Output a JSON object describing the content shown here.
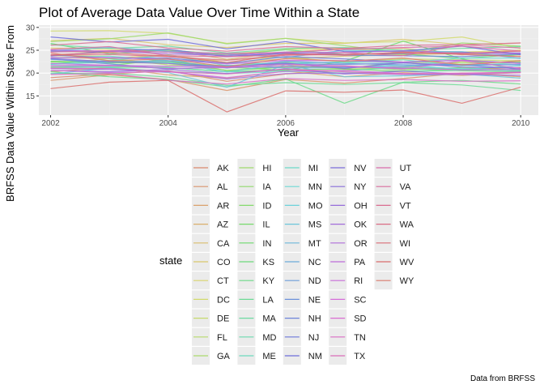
{
  "chart_data": {
    "type": "line",
    "title": "Plot of Average Data Value Over Time Within a State",
    "xlabel": "Year",
    "ylabel": "BRFSS Data Value Within State From",
    "caption": "Data from BRFSS",
    "x": [
      2002,
      2003,
      2004,
      2005,
      2006,
      2007,
      2008,
      2009,
      2010
    ],
    "xlim": [
      2001.8,
      2010.3
    ],
    "ylim": [
      10.8,
      30.5
    ],
    "xticks": [
      "2002",
      "2004",
      "2006",
      "2008",
      "2010"
    ],
    "yticks": [
      "15",
      "20",
      "25",
      "30"
    ],
    "grid": true,
    "legend": {
      "title": "state",
      "position": "bottom"
    },
    "series": [
      {
        "name": "AK",
        "values": [
          19.0,
          19.8,
          20.5,
          18.2,
          19.8,
          20.6,
          21.4,
          20.8,
          21.2
        ]
      },
      {
        "name": "AL",
        "values": [
          18.4,
          19.6,
          18.6,
          16.2,
          18.6,
          17.8,
          18.8,
          20.0,
          19.2
        ]
      },
      {
        "name": "AR",
        "values": [
          20.3,
          21.2,
          19.6,
          18.9,
          20.4,
          19.2,
          20.1,
          19.5,
          20.1
        ]
      },
      {
        "name": "AZ",
        "values": [
          24.7,
          24.6,
          25.1,
          23.0,
          24.6,
          25.3,
          25.4,
          24.0,
          25.0
        ]
      },
      {
        "name": "CA",
        "values": [
          23.4,
          23.2,
          24.0,
          22.3,
          23.1,
          23.7,
          24.0,
          24.3,
          23.7
        ]
      },
      {
        "name": "CO",
        "values": [
          27.1,
          27.6,
          26.2,
          25.6,
          26.5,
          26.5,
          27.4,
          26.2,
          26.6
        ]
      },
      {
        "name": "CT",
        "values": [
          25.5,
          25.2,
          25.0,
          24.1,
          25.2,
          25.3,
          24.7,
          24.6,
          25.0
        ]
      },
      {
        "name": "DC",
        "values": [
          29.2,
          29.3,
          28.7,
          26.5,
          27.6,
          26.6,
          26.9,
          27.9,
          25.4
        ]
      },
      {
        "name": "DE",
        "values": [
          23.8,
          23.7,
          22.6,
          22.9,
          23.5,
          22.4,
          23.1,
          22.9,
          22.7
        ]
      },
      {
        "name": "FL",
        "values": [
          21.9,
          23.2,
          21.8,
          21.6,
          21.8,
          20.9,
          21.1,
          22.5,
          22.3
        ]
      },
      {
        "name": "GA",
        "values": [
          22.4,
          22.6,
          22.5,
          21.5,
          22.3,
          21.0,
          22.4,
          22.2,
          22.5
        ]
      },
      {
        "name": "HI",
        "values": [
          26.9,
          27.5,
          28.8,
          26.4,
          27.6,
          26.0,
          24.4,
          26.6,
          25.9
        ]
      },
      {
        "name": "IA",
        "values": [
          22.6,
          22.3,
          22.2,
          20.6,
          21.4,
          21.3,
          21.0,
          20.5,
          20.3
        ]
      },
      {
        "name": "ID",
        "values": [
          21.6,
          21.6,
          23.1,
          20.5,
          21.3,
          21.5,
          20.7,
          21.2,
          20.6
        ]
      },
      {
        "name": "IL",
        "values": [
          21.3,
          21.3,
          21.2,
          20.3,
          20.7,
          20.9,
          20.4,
          20.6,
          20.3
        ]
      },
      {
        "name": "IN",
        "values": [
          22.5,
          22.2,
          22.4,
          21.3,
          20.6,
          22.6,
          27.0,
          23.1,
          20.6
        ]
      },
      {
        "name": "KS",
        "values": [
          26.5,
          24.2,
          25.1,
          23.9,
          25.1,
          24.1,
          24.2,
          23.2,
          24.1
        ]
      },
      {
        "name": "KY",
        "values": [
          20.3,
          19.2,
          18.6,
          17.0,
          18.7,
          13.4,
          18.0,
          18.4,
          17.6
        ]
      },
      {
        "name": "LA",
        "values": [
          19.9,
          20.0,
          19.1,
          17.3,
          17.9,
          17.5,
          17.9,
          17.4,
          16.2
        ]
      },
      {
        "name": "MA",
        "values": [
          26.2,
          25.4,
          25.9,
          24.4,
          25.4,
          25.6,
          25.0,
          25.4,
          25.8
        ]
      },
      {
        "name": "MD",
        "values": [
          21.2,
          21.4,
          21.2,
          20.3,
          20.5,
          20.0,
          20.4,
          20.6,
          20.3
        ]
      },
      {
        "name": "ME",
        "values": [
          22.0,
          22.8,
          23.9,
          21.6,
          22.4,
          22.2,
          22.9,
          21.6,
          22.3
        ]
      },
      {
        "name": "MI",
        "values": [
          21.6,
          21.2,
          20.3,
          19.9,
          20.3,
          20.5,
          21.3,
          21.0,
          20.5
        ]
      },
      {
        "name": "MN",
        "values": [
          23.3,
          23.7,
          22.7,
          22.2,
          22.0,
          22.5,
          22.3,
          23.3,
          23.3
        ]
      },
      {
        "name": "MO",
        "values": [
          21.9,
          22.4,
          22.4,
          20.2,
          22.1,
          21.2,
          21.8,
          20.8,
          21.6
        ]
      },
      {
        "name": "MS",
        "values": [
          19.8,
          21.1,
          20.1,
          16.9,
          21.9,
          19.2,
          19.4,
          19.8,
          18.9
        ]
      },
      {
        "name": "MT",
        "values": [
          24.9,
          25.6,
          24.8,
          24.2,
          23.4,
          25.0,
          24.8,
          24.7,
          23.2
        ]
      },
      {
        "name": "NC",
        "values": [
          21.6,
          21.7,
          21.5,
          21.7,
          21.1,
          21.2,
          21.5,
          21.9,
          21.8
        ]
      },
      {
        "name": "ND",
        "values": [
          23.0,
          22.4,
          22.7,
          21.1,
          22.6,
          22.1,
          21.8,
          21.7,
          21.9
        ]
      },
      {
        "name": "NE",
        "values": [
          23.1,
          22.0,
          20.9,
          21.4,
          22.0,
          21.9,
          22.2,
          21.8,
          20.9
        ]
      },
      {
        "name": "NH",
        "values": [
          24.8,
          24.8,
          24.6,
          23.7,
          24.3,
          23.9,
          23.8,
          23.6,
          24.2
        ]
      },
      {
        "name": "NJ",
        "values": [
          24.0,
          23.3,
          23.3,
          22.1,
          23.6,
          23.1,
          22.4,
          22.8,
          22.2
        ]
      },
      {
        "name": "NM",
        "values": [
          27.9,
          26.8,
          27.4,
          25.3,
          26.9,
          24.7,
          24.8,
          25.9,
          24.0
        ]
      },
      {
        "name": "NV",
        "values": [
          23.7,
          24.9,
          25.2,
          23.6,
          24.4,
          24.1,
          24.3,
          24.5,
          24.4
        ]
      },
      {
        "name": "NY",
        "values": [
          23.2,
          22.5,
          22.1,
          21.3,
          22.2,
          21.0,
          22.3,
          21.3,
          21.1
        ]
      },
      {
        "name": "OH",
        "values": [
          20.6,
          20.3,
          20.8,
          19.9,
          20.9,
          19.8,
          20.4,
          19.8,
          20.2
        ]
      },
      {
        "name": "OK",
        "values": [
          21.0,
          20.8,
          20.4,
          18.7,
          19.9,
          20.0,
          19.7,
          19.7,
          19.5
        ]
      },
      {
        "name": "OR",
        "values": [
          25.0,
          24.8,
          24.2,
          23.9,
          24.6,
          24.5,
          24.9,
          24.3,
          24.3
        ]
      },
      {
        "name": "PA",
        "values": [
          22.1,
          21.7,
          21.0,
          21.2,
          21.5,
          21.4,
          21.1,
          20.7,
          20.8
        ]
      },
      {
        "name": "RI",
        "values": [
          23.4,
          23.4,
          23.0,
          22.0,
          22.8,
          22.7,
          22.4,
          22.8,
          22.1
        ]
      },
      {
        "name": "SC",
        "values": [
          20.6,
          20.1,
          20.3,
          19.0,
          20.4,
          20.6,
          19.9,
          19.8,
          20.1
        ]
      },
      {
        "name": "SD",
        "values": [
          21.6,
          21.6,
          21.5,
          21.4,
          21.9,
          21.6,
          20.9,
          22.7,
          21.0
        ]
      },
      {
        "name": "TN",
        "values": [
          19.7,
          19.9,
          18.4,
          17.6,
          18.8,
          18.4,
          18.6,
          18.2,
          18.3
        ]
      },
      {
        "name": "TX",
        "values": [
          21.1,
          21.0,
          20.3,
          19.8,
          20.9,
          20.3,
          19.8,
          20.0,
          20.2
        ]
      },
      {
        "name": "UT",
        "values": [
          24.6,
          24.9,
          24.6,
          24.3,
          24.5,
          25.2,
          25.6,
          25.9,
          24.8
        ]
      },
      {
        "name": "VA",
        "values": [
          25.2,
          25.8,
          23.8,
          23.6,
          24.0,
          24.5,
          23.8,
          26.2,
          25.5
        ]
      },
      {
        "name": "VT",
        "values": [
          26.1,
          26.9,
          25.5,
          24.8,
          25.8,
          25.4,
          26.1,
          26.2,
          26.6
        ]
      },
      {
        "name": "WA",
        "values": [
          23.9,
          24.1,
          23.6,
          22.8,
          23.9,
          24.1,
          24.4,
          24.3,
          24.8
        ]
      },
      {
        "name": "WI",
        "values": [
          24.0,
          24.5,
          23.7,
          22.3,
          24.2,
          23.9,
          24.6,
          24.1,
          23.6
        ]
      },
      {
        "name": "WV",
        "values": [
          16.6,
          18.0,
          18.4,
          11.5,
          16.1,
          15.8,
          16.3,
          13.4,
          16.9
        ]
      },
      {
        "name": "WY",
        "values": [
          24.4,
          22.7,
          23.1,
          21.4,
          23.2,
          22.6,
          23.3,
          21.8,
          22.7
        ]
      }
    ]
  }
}
